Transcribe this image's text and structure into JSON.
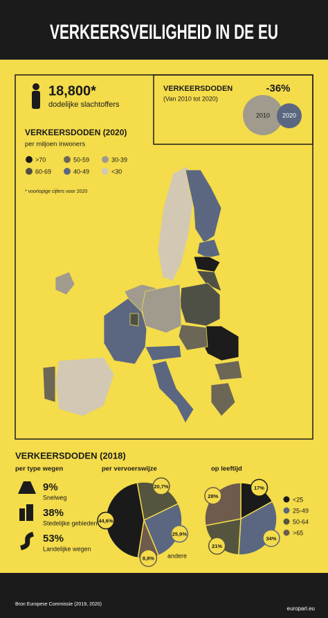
{
  "header": {
    "title": "VERKEERSVEILIGHEID IN DE EU"
  },
  "summary": {
    "total": "18,800*",
    "total_label": "dodelijke slachtoffers",
    "change_title": "VERKEERSDODEN",
    "change_period": "(Van 2010 tot 2020)",
    "change": "-36%",
    "years": [
      "2010",
      "2020"
    ]
  },
  "map": {
    "title": "VERKEERSDODEN (2020)",
    "subtitle": "per miljoen inwoners",
    "legend": [
      {
        "label": ">70",
        "color": "#1c1c1c"
      },
      {
        "label": "50-59",
        "color": "#6b6656"
      },
      {
        "label": "30-39",
        "color": "#a09b8c"
      },
      {
        "label": "60-69",
        "color": "#4f5045"
      },
      {
        "label": "40-49",
        "color": "#5b6781"
      },
      {
        "label": "<30",
        "color": "#d2c8b3"
      }
    ],
    "note": "* voorlopige cijfers voor 2020"
  },
  "stats": {
    "title": "VERKEERSDODEN (2018)",
    "road": {
      "title": "per type wegen",
      "items": [
        {
          "value": "9%",
          "label": "Snelweg"
        },
        {
          "value": "38%",
          "label": "Stedelijke gebieden"
        },
        {
          "value": "53%",
          "label": "Landelijke wegen"
        }
      ]
    },
    "mode": {
      "title": "per vervoerswijze",
      "values": [
        20.7,
        25.9,
        8.8,
        44.6
      ],
      "value_labels": [
        "20,7%",
        "25,9%",
        "8,8%",
        "44,6%"
      ],
      "colors": [
        "#55553f",
        "#5b6781",
        "#6e5b4d",
        "#1a1a1a"
      ],
      "other_label": "andere"
    },
    "age": {
      "title": "op leeftijd",
      "values": [
        17,
        34,
        21,
        28
      ],
      "value_labels": [
        "17%",
        "34%",
        "21%",
        "28%"
      ],
      "categories": [
        "<25",
        "25-49",
        "50-64",
        ">65"
      ],
      "colors": [
        "#1a1a1a",
        "#5b6781",
        "#55553f",
        "#6e5b4d"
      ]
    }
  },
  "footer": {
    "source": "Bron Europese Commissie (2019, 2020)",
    "site": "europarl.eu"
  }
}
